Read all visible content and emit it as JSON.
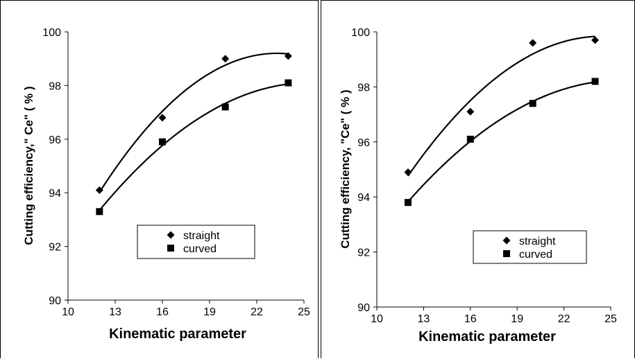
{
  "chart_data": [
    {
      "type": "scatter",
      "title": "",
      "xlabel": "Kinematic parameter",
      "ylabel": "Cutting efficiency,\" Ce\" ( % )",
      "xlim": [
        10,
        25
      ],
      "ylim": [
        90,
        100
      ],
      "xticks": [
        10,
        13,
        16,
        19,
        22,
        25
      ],
      "yticks": [
        90,
        92,
        94,
        96,
        98,
        100
      ],
      "grid": false,
      "legend_position": "lower-right",
      "series": [
        {
          "name": "straight",
          "marker": "diamond",
          "x": [
            12,
            16,
            20,
            24
          ],
          "y": [
            94.1,
            96.8,
            99.0,
            99.1
          ],
          "trendline": "polynomial"
        },
        {
          "name": "curved",
          "marker": "square",
          "x": [
            12,
            16,
            20,
            24
          ],
          "y": [
            93.3,
            95.9,
            97.2,
            98.1
          ],
          "trendline": "polynomial"
        }
      ]
    },
    {
      "type": "scatter",
      "title": "",
      "xlabel": "Kinematic parameter",
      "ylabel": "Cutting efficiency, \"Ce\" ( % )",
      "xlim": [
        10,
        25
      ],
      "ylim": [
        90,
        100
      ],
      "xticks": [
        10,
        13,
        16,
        19,
        22,
        25
      ],
      "yticks": [
        90,
        92,
        94,
        96,
        98,
        100
      ],
      "grid": false,
      "legend_position": "lower-right",
      "series": [
        {
          "name": "straight",
          "marker": "diamond",
          "x": [
            12,
            16,
            20,
            24
          ],
          "y": [
            94.9,
            97.1,
            99.6,
            99.7
          ],
          "trendline": "polynomial"
        },
        {
          "name": "curved",
          "marker": "square",
          "x": [
            12,
            16,
            20,
            24
          ],
          "y": [
            93.8,
            96.1,
            97.4,
            98.2
          ],
          "trendline": "polynomial"
        }
      ]
    }
  ],
  "colors": {
    "marker": "#000000",
    "line": "#000000",
    "background": "#ffffff"
  }
}
